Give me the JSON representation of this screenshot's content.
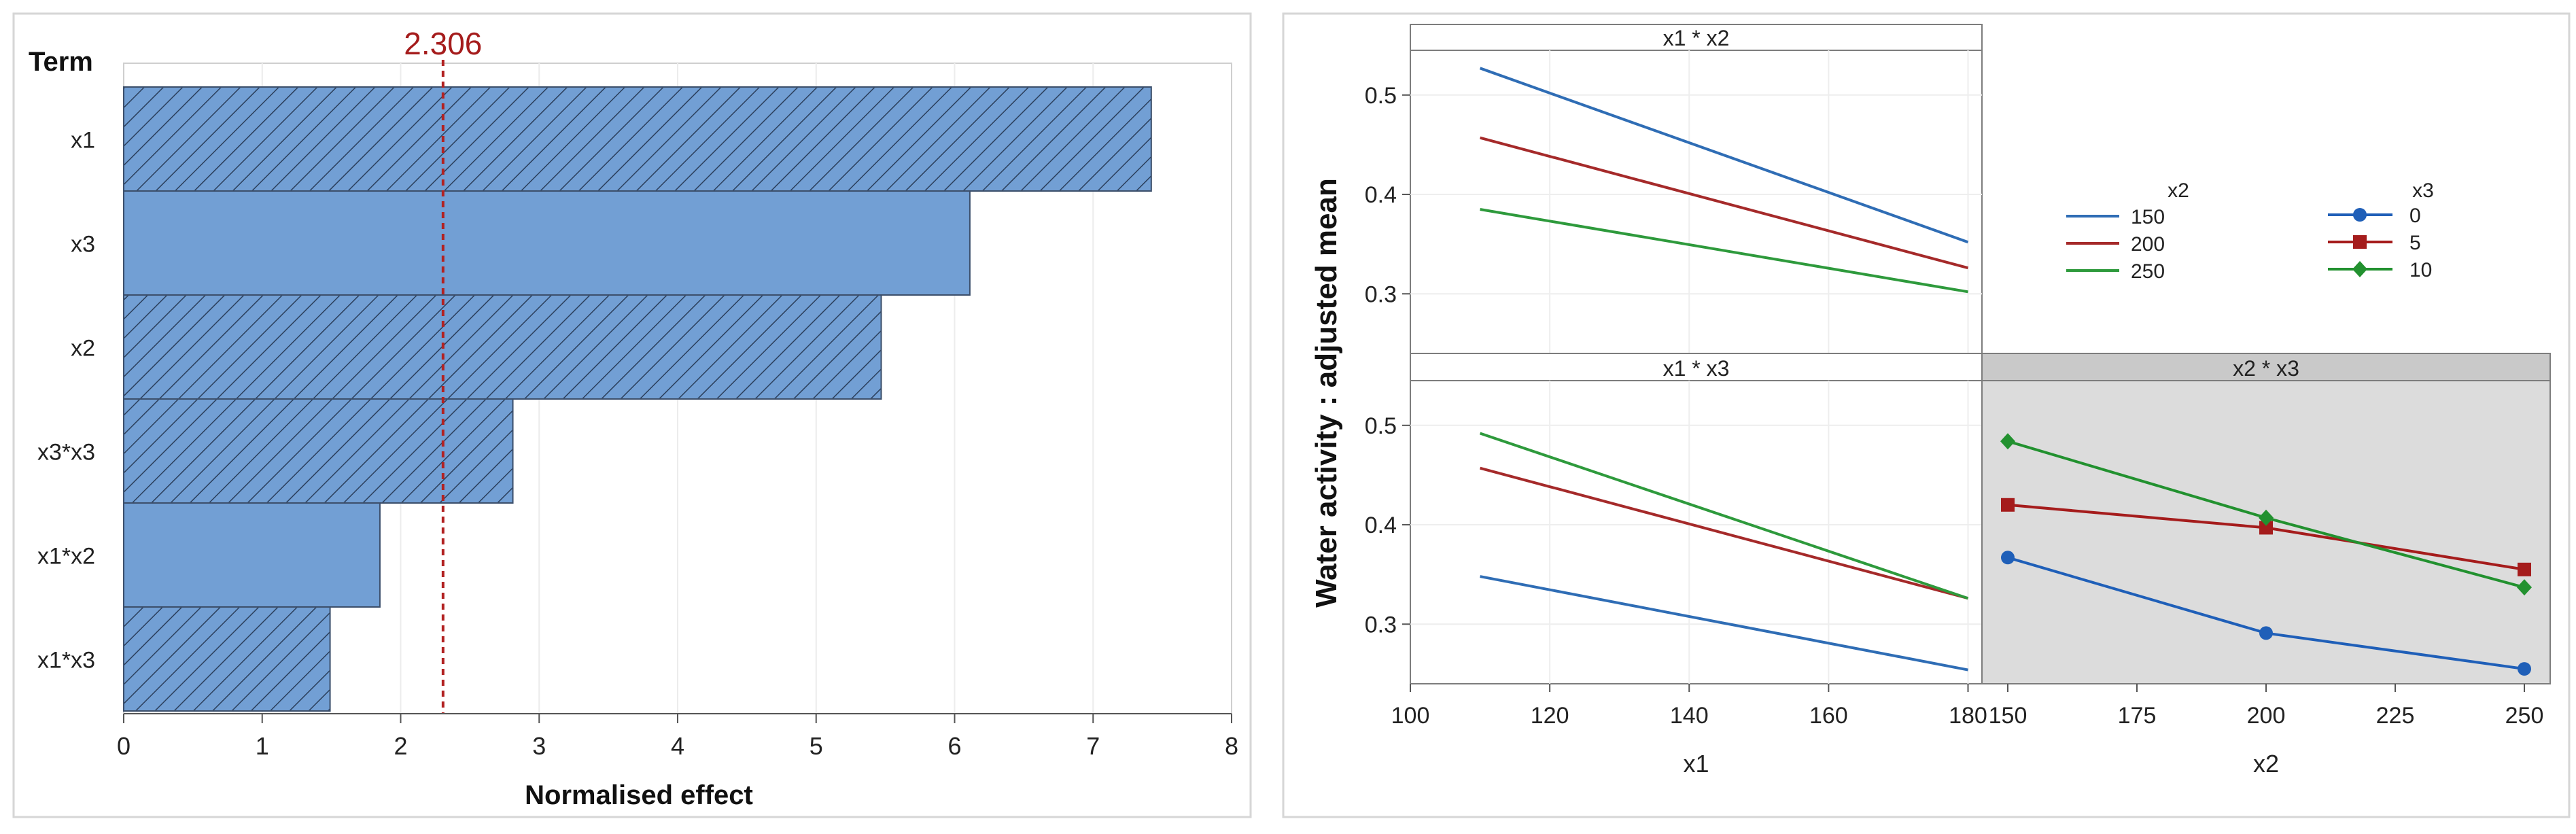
{
  "chart_data": [
    {
      "type": "bar",
      "orientation": "horizontal",
      "title": "",
      "ylabel": "Term",
      "xlabel": "Normalised effect",
      "categories": [
        "x1",
        "x3",
        "x2",
        "x3*x3",
        "x1*x2",
        "x1*x3"
      ],
      "values": [
        7.42,
        6.11,
        5.47,
        2.81,
        1.85,
        1.49
      ],
      "hatched": [
        true,
        false,
        true,
        true,
        false,
        true
      ],
      "xlim": [
        0,
        8
      ],
      "xticks": [
        "0",
        "1",
        "2",
        "3",
        "4",
        "5",
        "6",
        "7",
        "8"
      ],
      "reference_line": {
        "value": 2.306,
        "label": "2.306",
        "color": "#a51c1c"
      },
      "bar_color": "#729fd4"
    },
    {
      "type": "line",
      "title": "",
      "ylabel": "Water activity : adjusted mean",
      "ylim": [
        0.24,
        0.545
      ],
      "yticks": [
        "0.3",
        "0.4",
        "0.5"
      ],
      "panels": [
        {
          "title": "x1 * x2",
          "xlabel": "",
          "xlim": [
            100,
            182
          ],
          "series": [
            {
              "name": "150",
              "color": "#2f6db5",
              "x": [
                110,
                180
              ],
              "y": [
                0.527,
                0.352
              ]
            },
            {
              "name": "200",
              "color": "#a52a2a",
              "x": [
                110,
                180
              ],
              "y": [
                0.457,
                0.326
              ]
            },
            {
              "name": "250",
              "color": "#2e9a3c",
              "x": [
                110,
                180
              ],
              "y": [
                0.385,
                0.302
              ]
            }
          ]
        },
        {
          "title": "x1 * x3",
          "xlabel": "x1",
          "xlim": [
            100,
            182
          ],
          "xticks": [
            "100",
            "120",
            "140",
            "160",
            "180"
          ],
          "series": [
            {
              "name": "0",
              "color": "#2f6db5",
              "x": [
                110,
                180
              ],
              "y": [
                0.348,
                0.254
              ]
            },
            {
              "name": "5",
              "color": "#a52a2a",
              "x": [
                110,
                180
              ],
              "y": [
                0.457,
                0.326
              ]
            },
            {
              "name": "10",
              "color": "#2e9a3c",
              "x": [
                110,
                180
              ],
              "y": [
                0.492,
                0.326
              ]
            }
          ]
        },
        {
          "title": "x2 * x3",
          "xlabel": "x2",
          "xlim": [
            145,
            255
          ],
          "xticks": [
            "150",
            "175",
            "200",
            "225",
            "250"
          ],
          "series": [
            {
              "name": "0",
              "color": "#1f5fb8",
              "marker": "circle",
              "x": [
                150,
                200,
                250
              ],
              "y": [
                0.367,
                0.291,
                0.255
              ]
            },
            {
              "name": "5",
              "color": "#a51c1c",
              "marker": "square",
              "x": [
                150,
                200,
                250
              ],
              "y": [
                0.42,
                0.397,
                0.355
              ]
            },
            {
              "name": "10",
              "color": "#22912f",
              "marker": "diamond",
              "x": [
                150,
                200,
                250
              ],
              "y": [
                0.484,
                0.407,
                0.337
              ]
            }
          ]
        }
      ],
      "legends": [
        {
          "title": "x2",
          "entries": [
            "150",
            "200",
            "250"
          ]
        },
        {
          "title": "x3",
          "entries": [
            "0",
            "5",
            "10"
          ]
        }
      ]
    }
  ]
}
